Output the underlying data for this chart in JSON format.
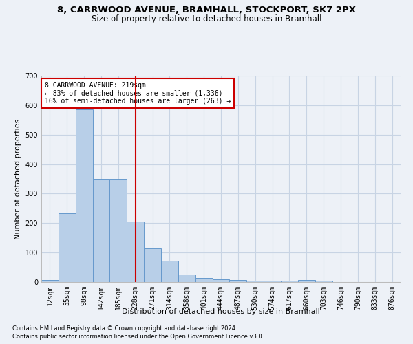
{
  "title_line1": "8, CARRWOOD AVENUE, BRAMHALL, STOCKPORT, SK7 2PX",
  "title_line2": "Size of property relative to detached houses in Bramhall",
  "xlabel": "Distribution of detached houses by size in Bramhall",
  "ylabel": "Number of detached properties",
  "footnote1": "Contains HM Land Registry data © Crown copyright and database right 2024.",
  "footnote2": "Contains public sector information licensed under the Open Government Licence v3.0.",
  "annotation_line1": "8 CARRWOOD AVENUE: 219sqm",
  "annotation_line2": "← 83% of detached houses are smaller (1,336)",
  "annotation_line3": "16% of semi-detached houses are larger (263) →",
  "bar_color": "#b8cfe8",
  "bar_edge_color": "#6699cc",
  "grid_color": "#c8d4e4",
  "vline_color": "#cc0000",
  "vline_x": 5.0,
  "annotation_box_color": "#cc0000",
  "ylim": [
    0,
    700
  ],
  "yticks": [
    0,
    100,
    200,
    300,
    400,
    500,
    600,
    700
  ],
  "categories": [
    "12sqm",
    "55sqm",
    "98sqm",
    "142sqm",
    "185sqm",
    "228sqm",
    "271sqm",
    "314sqm",
    "358sqm",
    "401sqm",
    "444sqm",
    "487sqm",
    "530sqm",
    "574sqm",
    "617sqm",
    "660sqm",
    "703sqm",
    "746sqm",
    "790sqm",
    "833sqm",
    "876sqm"
  ],
  "values": [
    8,
    234,
    585,
    350,
    350,
    205,
    115,
    72,
    25,
    15,
    10,
    8,
    5,
    5,
    5,
    8,
    5,
    0,
    0,
    0,
    0
  ],
  "background_color": "#edf1f7",
  "title1_fontsize": 9.5,
  "title2_fontsize": 8.5,
  "ylabel_fontsize": 8,
  "xlabel_fontsize": 8,
  "tick_fontsize": 7,
  "annot_fontsize": 7,
  "footnote_fontsize": 6
}
